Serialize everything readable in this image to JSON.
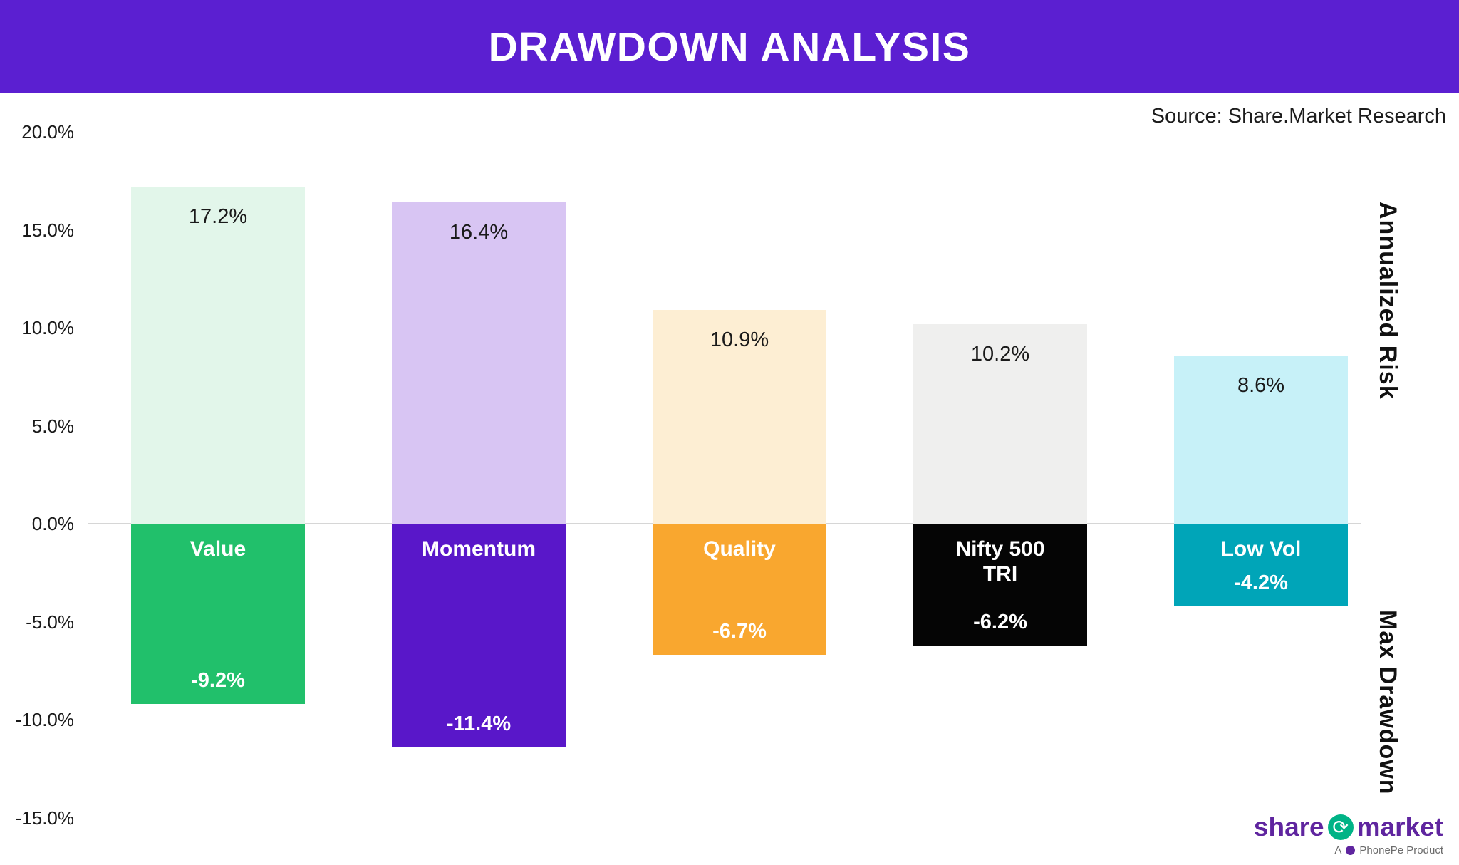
{
  "header": {
    "title": "DRAWDOWN ANALYSIS"
  },
  "source": "Source: Share.Market Research",
  "axis": {
    "ticks": [
      "20.0%",
      "15.0%",
      "10.0%",
      "5.0%",
      "0.0%",
      "-5.0%",
      "-10.0%",
      "-15.0%"
    ]
  },
  "right_labels": {
    "top": "Annualized Risk",
    "bottom": "Max Drawdown"
  },
  "chart_data": {
    "type": "bar",
    "categories": [
      "Value",
      "Momentum",
      "Quality",
      "Nifty 500 TRI",
      "Low Vol"
    ],
    "category_display": [
      [
        "Value"
      ],
      [
        "Momentum"
      ],
      [
        "Quality"
      ],
      [
        "Nifty 500",
        "TRI"
      ],
      [
        "Low Vol"
      ]
    ],
    "series": [
      {
        "name": "Annualized Risk",
        "values": [
          17.2,
          16.4,
          10.9,
          10.2,
          8.6
        ]
      },
      {
        "name": "Max Drawdown",
        "values": [
          -9.2,
          -11.4,
          -6.7,
          -6.2,
          -4.2
        ]
      }
    ],
    "labels": {
      "positive": [
        "17.2%",
        "16.4%",
        "10.9%",
        "10.2%",
        "8.6%"
      ],
      "negative": [
        "-9.2%",
        "-11.4%",
        "-6.7%",
        "-6.2%",
        "-4.2%"
      ]
    },
    "colors": {
      "positive": [
        "#e2f6ea",
        "#d8c5f3",
        "#fdeed3",
        "#efefee",
        "#c7f1f8"
      ],
      "negative": [
        "#21c06b",
        "#5917c9",
        "#f9a72f",
        "#050505",
        "#00a5b8"
      ]
    },
    "title": "DRAWDOWN ANALYSIS",
    "xlabel": "",
    "ylabel_positive": "Annualized Risk",
    "ylabel_negative": "Max Drawdown",
    "ylim": [
      -15,
      20
    ],
    "grid": false,
    "legend": "none"
  },
  "theme": {
    "banner_bg": "#5b1fd1",
    "logo_purple": "#5f259f",
    "logo_green": "#00b386"
  },
  "logo": {
    "part1": "share",
    "icon": "⟳",
    "part2": "market",
    "sub_a": "A",
    "sub_rest": "PhonePe Product"
  }
}
